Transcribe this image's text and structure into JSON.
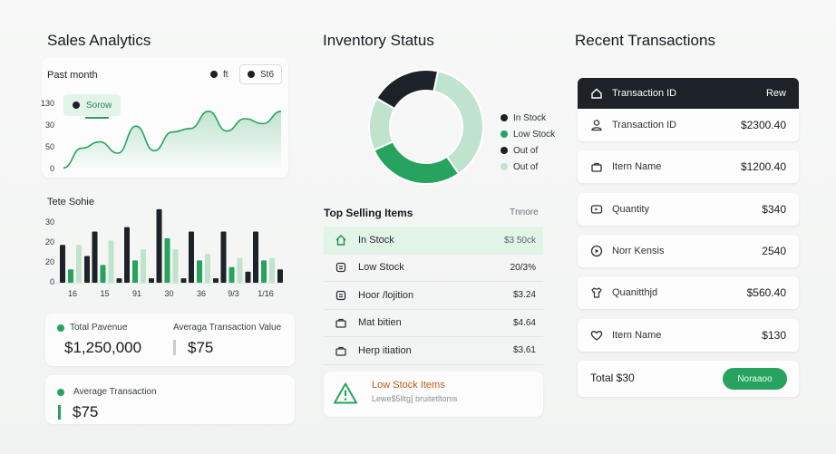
{
  "colors": {
    "accent": "#27a35f",
    "dark": "#1c2228",
    "light_green": "#bfe3cc",
    "warning": "#c05b1c"
  },
  "sales": {
    "title": "Sales Analytics",
    "period": "Past month",
    "legend": [
      "ft",
      "St6"
    ],
    "series_tag": "Sorow",
    "line_yticks": [
      "130",
      "30",
      "50",
      "0"
    ],
    "bar_title": "Tete Sohie",
    "bar_yticks": [
      "30",
      "20",
      "20",
      "0"
    ],
    "total_revenue_label": "Total Pavenue",
    "total_revenue": "$1,250,000",
    "avg_tx_value_label": "Averaga Transaction Value",
    "avg_tx_value": "$75",
    "avg_tx_label": "Average Transaction",
    "avg_tx": "$75"
  },
  "chart_data": [
    {
      "type": "line",
      "title": "",
      "x": [
        0,
        1,
        2,
        3,
        4,
        5,
        6,
        7,
        8,
        9,
        10,
        11,
        12
      ],
      "series": [
        {
          "name": "Sorow",
          "values": [
            5,
            45,
            58,
            35,
            90,
            40,
            78,
            85,
            120,
            80,
            105,
            95,
            120
          ]
        }
      ],
      "ylim": [
        0,
        140
      ],
      "grid": false
    },
    {
      "type": "bar",
      "title": "Tete Sohie",
      "categories": [
        "16",
        "15",
        "91",
        "30",
        "36",
        "9/3",
        "1/16"
      ],
      "series": [
        {
          "values": [
            17,
            23,
            25,
            33,
            23,
            23,
            23
          ]
        },
        {
          "values": [
            6,
            8,
            10,
            20,
            10,
            7,
            10
          ]
        },
        {
          "values": [
            17,
            19,
            15,
            15,
            13,
            11,
            11
          ]
        },
        {
          "values": [
            12,
            2,
            2,
            2,
            2,
            5,
            6
          ]
        }
      ],
      "ylim": [
        0,
        35
      ]
    },
    {
      "type": "pie",
      "title": "Inventory Status",
      "categories": [
        "In Stock",
        "Low Stock",
        "Out of",
        "Out of"
      ],
      "values": [
        37,
        28,
        20,
        15
      ],
      "legend_position": "right"
    }
  ],
  "inventory": {
    "title": "Inventory Status",
    "legend": [
      {
        "label": "In Stock",
        "color": "#1c2026"
      },
      {
        "label": "Low Stock",
        "color": "#27a35f"
      },
      {
        "label": "Out of",
        "color": "#1c2026"
      },
      {
        "label": "Out of",
        "color": "#bfe3cc"
      }
    ],
    "top_selling_title": "Top Selling Items",
    "top_selling_right": "Tnnore",
    "items": [
      {
        "icon": "home-icon",
        "name": "In Stock",
        "value": "$3 50ck"
      },
      {
        "icon": "box-icon",
        "name": "Low Stock",
        "value": "20/3%"
      },
      {
        "icon": "box-icon",
        "name": "Hoor /lojition",
        "value": "$3.24"
      },
      {
        "icon": "bag-icon",
        "name": "Mat bitien",
        "value": "$4.64"
      },
      {
        "icon": "bag-icon",
        "name": "Herp itiation",
        "value": "$3.61"
      }
    ],
    "alert_title": "Low Stock Items",
    "alert_sub": "Lewe$5lltg] bruitetltoms"
  },
  "transactions": {
    "title": "Recent Transactions",
    "header_label": "Transaction ID",
    "header_right": "Rew",
    "rows": [
      {
        "icon": "person-icon",
        "label": "Transaction ID",
        "value": "$2300.40"
      },
      {
        "icon": "bag-icon",
        "label": "Itern Name",
        "value": "$1200.40"
      },
      {
        "icon": "tag-icon",
        "label": "Quantity",
        "value": "$340"
      },
      {
        "icon": "play-circle-icon",
        "label": "Norr Kensis",
        "value": "2540"
      },
      {
        "icon": "shirt-icon",
        "label": "Quanitthjd",
        "value": "$560.40"
      },
      {
        "icon": "heart-icon",
        "label": "Itern Name",
        "value": "$130"
      }
    ],
    "total_label": "Total $30",
    "button_label": "Noraaoo"
  }
}
